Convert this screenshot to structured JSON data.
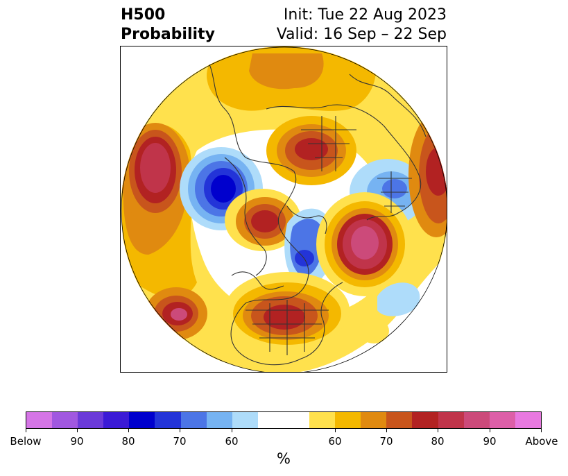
{
  "title": {
    "left_line1": "H500",
    "left_line2": "Probability",
    "right_line1": "Init: Tue 22 Aug 2023",
    "right_line2": "Valid: 16 Sep – 22 Sep"
  },
  "map": {
    "projection": "north polar stereographic",
    "colors": {
      "above_60": "#ffe14d",
      "above_65": "#f4b800",
      "above_70": "#e08a10",
      "above_75": "#c8551c",
      "above_80": "#b22222",
      "above_85": "#c0344a",
      "above_90": "#cc4a7a",
      "below_60": "#aedcfa",
      "below_65": "#76b3f2",
      "below_70": "#4c75e6",
      "below_75": "#2334d8",
      "below_80": "#0000cd"
    },
    "coastline_color": "#333333"
  },
  "colorbar": {
    "segments": [
      "#d575e6",
      "#a158e0",
      "#6b3ad9",
      "#3b1ad6",
      "#0000cd",
      "#2334d8",
      "#4c75e6",
      "#76b3f2",
      "#aedcfa",
      "#ffffff",
      "#ffe14d",
      "#f4b800",
      "#e08a10",
      "#c8551c",
      "#b22222",
      "#c0344a",
      "#cc4a7a",
      "#dd5fa8",
      "#e879e0"
    ],
    "tick_labels": [
      "Below",
      "90",
      "80",
      "70",
      "60",
      "60",
      "70",
      "80",
      "90",
      "Above"
    ],
    "unit": "%"
  }
}
